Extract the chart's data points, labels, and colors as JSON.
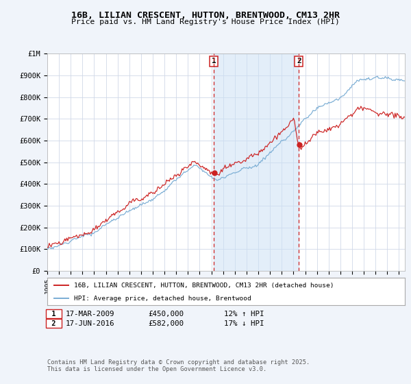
{
  "title1": "16B, LILIAN CRESCENT, HUTTON, BRENTWOOD, CM13 2HR",
  "title2": "Price paid vs. HM Land Registry's House Price Index (HPI)",
  "ylabel_values": [
    "£0",
    "£100K",
    "£200K",
    "£300K",
    "£400K",
    "£500K",
    "£600K",
    "£700K",
    "£800K",
    "£900K",
    "£1M"
  ],
  "ylim": [
    0,
    1000000
  ],
  "xlim_start": 1995.0,
  "xlim_end": 2025.5,
  "hpi_color": "#7aadd4",
  "price_color": "#cc2222",
  "marker1_date": 2009.21,
  "marker2_date": 2016.46,
  "marker1_price": 450000,
  "marker2_price": 582000,
  "legend_line1": "16B, LILIAN CRESCENT, HUTTON, BRENTWOOD, CM13 2HR (detached house)",
  "legend_line2": "HPI: Average price, detached house, Brentwood",
  "footnote": "Contains HM Land Registry data © Crown copyright and database right 2025.\nThis data is licensed under the Open Government Licence v3.0.",
  "background_color": "#f0f4fa",
  "plot_bg_color": "#ffffff",
  "grid_color": "#d0d8e8",
  "dashed_color": "#cc2222",
  "span_color": "#cce0f5"
}
